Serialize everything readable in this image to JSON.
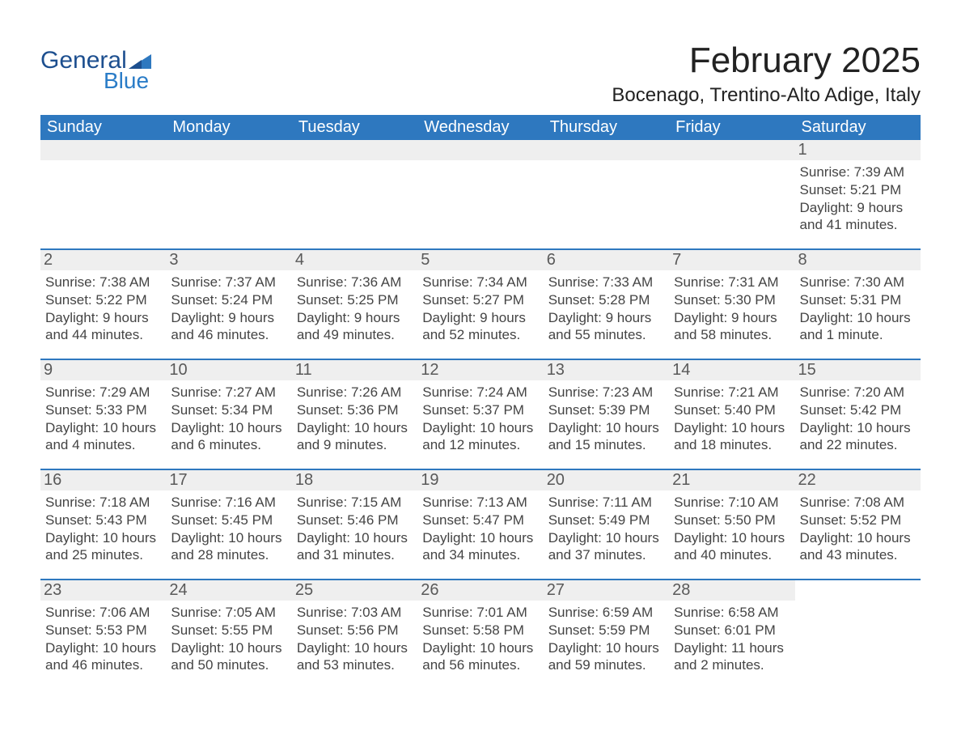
{
  "logo": {
    "text1": "General",
    "text2": "Blue"
  },
  "title": "February 2025",
  "location": "Bocenago, Trentino-Alto Adige, Italy",
  "colors": {
    "header_bg": "#2e78bf",
    "header_text": "#ffffff",
    "daynum_bg": "#efefef",
    "daynum_text": "#595959",
    "rule": "#2e78bf",
    "text": "#444444",
    "logo_general": "#1d4f8f",
    "logo_blue": "#2a7cc7"
  },
  "weekdays": [
    "Sunday",
    "Monday",
    "Tuesday",
    "Wednesday",
    "Thursday",
    "Friday",
    "Saturday"
  ],
  "weeks": [
    [
      null,
      null,
      null,
      null,
      null,
      null,
      {
        "n": "1",
        "sr": "7:39 AM",
        "ss": "5:21 PM",
        "dl": "9 hours and 41 minutes."
      }
    ],
    [
      {
        "n": "2",
        "sr": "7:38 AM",
        "ss": "5:22 PM",
        "dl": "9 hours and 44 minutes."
      },
      {
        "n": "3",
        "sr": "7:37 AM",
        "ss": "5:24 PM",
        "dl": "9 hours and 46 minutes."
      },
      {
        "n": "4",
        "sr": "7:36 AM",
        "ss": "5:25 PM",
        "dl": "9 hours and 49 minutes."
      },
      {
        "n": "5",
        "sr": "7:34 AM",
        "ss": "5:27 PM",
        "dl": "9 hours and 52 minutes."
      },
      {
        "n": "6",
        "sr": "7:33 AM",
        "ss": "5:28 PM",
        "dl": "9 hours and 55 minutes."
      },
      {
        "n": "7",
        "sr": "7:31 AM",
        "ss": "5:30 PM",
        "dl": "9 hours and 58 minutes."
      },
      {
        "n": "8",
        "sr": "7:30 AM",
        "ss": "5:31 PM",
        "dl": "10 hours and 1 minute."
      }
    ],
    [
      {
        "n": "9",
        "sr": "7:29 AM",
        "ss": "5:33 PM",
        "dl": "10 hours and 4 minutes."
      },
      {
        "n": "10",
        "sr": "7:27 AM",
        "ss": "5:34 PM",
        "dl": "10 hours and 6 minutes."
      },
      {
        "n": "11",
        "sr": "7:26 AM",
        "ss": "5:36 PM",
        "dl": "10 hours and 9 minutes."
      },
      {
        "n": "12",
        "sr": "7:24 AM",
        "ss": "5:37 PM",
        "dl": "10 hours and 12 minutes."
      },
      {
        "n": "13",
        "sr": "7:23 AM",
        "ss": "5:39 PM",
        "dl": "10 hours and 15 minutes."
      },
      {
        "n": "14",
        "sr": "7:21 AM",
        "ss": "5:40 PM",
        "dl": "10 hours and 18 minutes."
      },
      {
        "n": "15",
        "sr": "7:20 AM",
        "ss": "5:42 PM",
        "dl": "10 hours and 22 minutes."
      }
    ],
    [
      {
        "n": "16",
        "sr": "7:18 AM",
        "ss": "5:43 PM",
        "dl": "10 hours and 25 minutes."
      },
      {
        "n": "17",
        "sr": "7:16 AM",
        "ss": "5:45 PM",
        "dl": "10 hours and 28 minutes."
      },
      {
        "n": "18",
        "sr": "7:15 AM",
        "ss": "5:46 PM",
        "dl": "10 hours and 31 minutes."
      },
      {
        "n": "19",
        "sr": "7:13 AM",
        "ss": "5:47 PM",
        "dl": "10 hours and 34 minutes."
      },
      {
        "n": "20",
        "sr": "7:11 AM",
        "ss": "5:49 PM",
        "dl": "10 hours and 37 minutes."
      },
      {
        "n": "21",
        "sr": "7:10 AM",
        "ss": "5:50 PM",
        "dl": "10 hours and 40 minutes."
      },
      {
        "n": "22",
        "sr": "7:08 AM",
        "ss": "5:52 PM",
        "dl": "10 hours and 43 minutes."
      }
    ],
    [
      {
        "n": "23",
        "sr": "7:06 AM",
        "ss": "5:53 PM",
        "dl": "10 hours and 46 minutes."
      },
      {
        "n": "24",
        "sr": "7:05 AM",
        "ss": "5:55 PM",
        "dl": "10 hours and 50 minutes."
      },
      {
        "n": "25",
        "sr": "7:03 AM",
        "ss": "5:56 PM",
        "dl": "10 hours and 53 minutes."
      },
      {
        "n": "26",
        "sr": "7:01 AM",
        "ss": "5:58 PM",
        "dl": "10 hours and 56 minutes."
      },
      {
        "n": "27",
        "sr": "6:59 AM",
        "ss": "5:59 PM",
        "dl": "10 hours and 59 minutes."
      },
      {
        "n": "28",
        "sr": "6:58 AM",
        "ss": "6:01 PM",
        "dl": "11 hours and 2 minutes."
      },
      null
    ]
  ],
  "labels": {
    "sunrise_prefix": "Sunrise: ",
    "sunset_prefix": "Sunset: ",
    "daylight_prefix": "Daylight: "
  }
}
